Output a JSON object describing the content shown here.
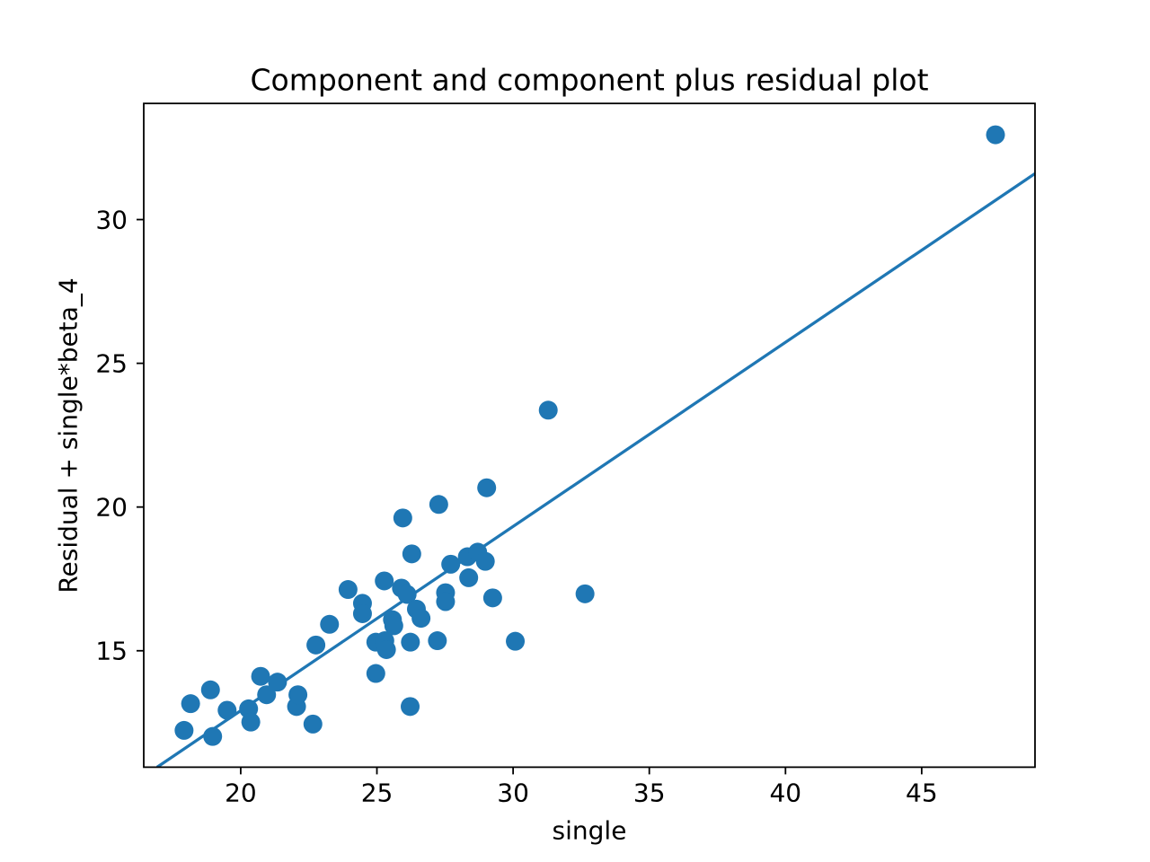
{
  "figure": {
    "background": "#ffffff"
  },
  "colors": {
    "marker": "#1f77b4",
    "fit_line": "#1f77b4",
    "axis": "#000000",
    "text": "#000000",
    "background": "#ffffff"
  },
  "chart_data": {
    "type": "scatter",
    "title": "Component and component plus residual plot",
    "xlabel": "single",
    "ylabel": "Residual + single*beta_4",
    "xlim": [
      16.44,
      49.16
    ],
    "ylim": [
      10.95,
      34.04
    ],
    "xticks": [
      20,
      25,
      30,
      35,
      40,
      45
    ],
    "yticks": [
      15,
      20,
      25,
      30
    ],
    "grid": false,
    "legend": null,
    "marker_radius_px": 10.5,
    "points": [
      [
        17.92,
        12.23
      ],
      [
        18.16,
        13.16
      ],
      [
        18.89,
        13.64
      ],
      [
        18.97,
        12.02
      ],
      [
        19.5,
        12.93
      ],
      [
        20.29,
        12.98
      ],
      [
        20.37,
        12.52
      ],
      [
        20.73,
        14.11
      ],
      [
        20.95,
        13.47
      ],
      [
        21.35,
        13.91
      ],
      [
        22.05,
        13.06
      ],
      [
        22.1,
        13.47
      ],
      [
        22.65,
        12.45
      ],
      [
        22.76,
        15.2
      ],
      [
        23.26,
        15.92
      ],
      [
        23.94,
        17.13
      ],
      [
        24.47,
        16.65
      ],
      [
        24.47,
        16.29
      ],
      [
        24.96,
        14.21
      ],
      [
        24.96,
        15.3
      ],
      [
        25.27,
        17.43
      ],
      [
        25.29,
        15.35
      ],
      [
        25.35,
        15.04
      ],
      [
        25.57,
        16.08
      ],
      [
        25.62,
        15.87
      ],
      [
        25.9,
        17.18
      ],
      [
        25.95,
        19.62
      ],
      [
        26.11,
        16.96
      ],
      [
        26.22,
        13.06
      ],
      [
        26.23,
        15.3
      ],
      [
        26.28,
        18.37
      ],
      [
        26.45,
        16.45
      ],
      [
        26.62,
        16.13
      ],
      [
        27.22,
        15.35
      ],
      [
        27.27,
        20.09
      ],
      [
        27.52,
        17.02
      ],
      [
        27.52,
        16.71
      ],
      [
        27.71,
        18.01
      ],
      [
        28.32,
        18.27
      ],
      [
        28.37,
        17.54
      ],
      [
        28.7,
        18.43
      ],
      [
        28.98,
        18.11
      ],
      [
        29.03,
        20.67
      ],
      [
        29.25,
        16.84
      ],
      [
        30.08,
        15.33
      ],
      [
        31.29,
        23.37
      ],
      [
        32.64,
        16.98
      ],
      [
        47.71,
        32.95
      ]
    ],
    "fit_line": {
      "slope": 0.641,
      "intercept": 0.1,
      "x1": 16.93,
      "y1": 10.95,
      "x2": 49.16,
      "y2": 31.6
    }
  }
}
